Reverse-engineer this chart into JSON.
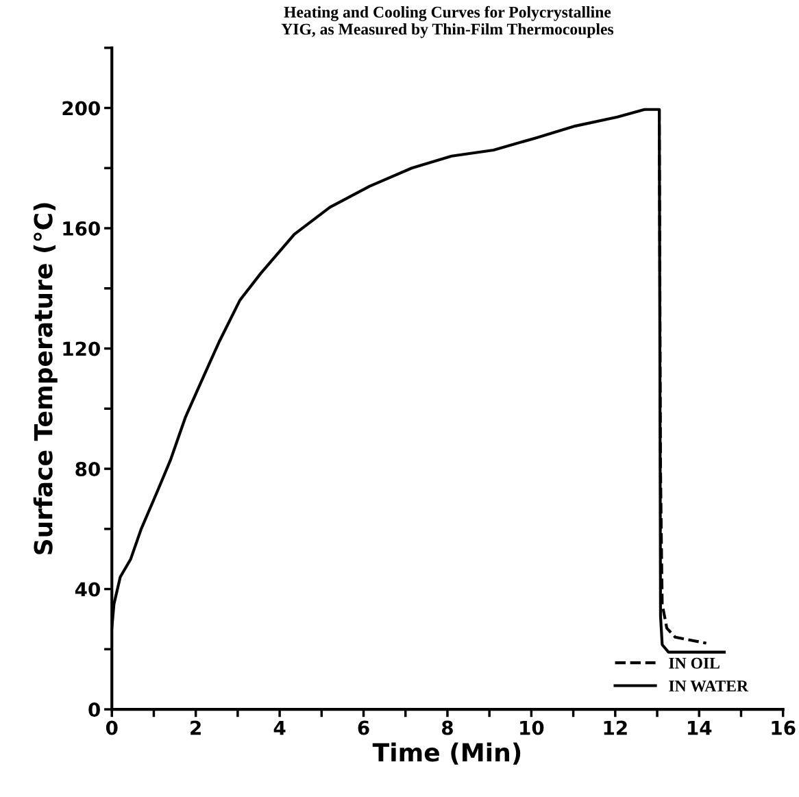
{
  "chart_data": {
    "type": "line",
    "title": "Heating and Cooling Curves for Polycrystalline\nYIG, as Measured by Thin-Film Thermocouples",
    "xlabel": "Time (Min)",
    "ylabel": "Surface Temperature (°C)",
    "xlim": [
      0,
      16
    ],
    "ylim": [
      0,
      220
    ],
    "xticks": [
      0,
      {
        "value": 1,
        "label": null
      },
      2,
      {
        "value": 3,
        "label": null
      },
      4,
      {
        "value": 5,
        "label": null
      },
      6,
      {
        "value": 7,
        "label": null
      },
      8,
      {
        "value": 9,
        "label": null
      },
      10,
      {
        "value": 11,
        "label": null
      },
      12,
      {
        "value": 13,
        "label": null
      },
      14,
      {
        "value": 15,
        "label": null
      },
      16
    ],
    "yticks": [
      0,
      {
        "value": 20,
        "label": null
      },
      40,
      {
        "value": 60,
        "label": null
      },
      80,
      {
        "value": 100,
        "label": null
      },
      120,
      {
        "value": 140,
        "label": null
      },
      160,
      {
        "value": 180,
        "label": null
      },
      200,
      {
        "value": 220,
        "label": null
      }
    ],
    "grid": false,
    "legend": "bottom right",
    "marker": "none",
    "series": [
      {
        "name": "IN OIL",
        "color": "#000000",
        "line_style": "dashed",
        "x": [
          13.05,
          13.08,
          13.1,
          13.12,
          13.23,
          13.43,
          14.17
        ],
        "values": [
          199.5,
          80,
          56,
          35,
          27,
          24,
          22
        ]
      },
      {
        "name": "IN WATER",
        "color": "#000000",
        "line_style": "solid",
        "x": [
          0,
          0.05,
          0.2,
          0.45,
          0.7,
          1.1,
          1.4,
          1.75,
          2.1,
          2.55,
          3.05,
          3.55,
          4.35,
          5.2,
          6.15,
          7.15,
          8.1,
          9.1,
          10.1,
          11.05,
          12.05,
          12.7,
          13.05,
          13.08,
          13.12,
          13.27,
          14.17,
          14.6
        ],
        "values": [
          27,
          35,
          44,
          50,
          60,
          73,
          83,
          97,
          108,
          122,
          136,
          145,
          158,
          167,
          174,
          180,
          184,
          186,
          190,
          194,
          197,
          199.5,
          199.5,
          31,
          21.5,
          19,
          19,
          19
        ]
      }
    ]
  }
}
